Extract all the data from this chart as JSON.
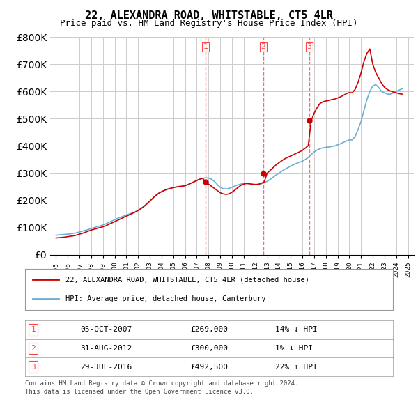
{
  "title": "22, ALEXANDRA ROAD, WHITSTABLE, CT5 4LR",
  "subtitle": "Price paid vs. HM Land Registry's House Price Index (HPI)",
  "legend_line1": "22, ALEXANDRA ROAD, WHITSTABLE, CT5 4LR (detached house)",
  "legend_line2": "HPI: Average price, detached house, Canterbury",
  "footnote1": "Contains HM Land Registry data © Crown copyright and database right 2024.",
  "footnote2": "This data is licensed under the Open Government Licence v3.0.",
  "table_rows": [
    {
      "num": "1",
      "date": "05-OCT-2007",
      "price": "£269,000",
      "change": "14% ↓ HPI"
    },
    {
      "num": "2",
      "date": "31-AUG-2012",
      "price": "£300,000",
      "change": "1% ↓ HPI"
    },
    {
      "num": "3",
      "date": "29-JUL-2016",
      "price": "£492,500",
      "change": "22% ↑ HPI"
    }
  ],
  "sale_dates": [
    2007.75,
    2012.67,
    2016.58
  ],
  "sale_prices": [
    269000,
    300000,
    492500
  ],
  "vline_years": [
    2007.75,
    2012.67,
    2016.58
  ],
  "ylim": [
    0,
    800000
  ],
  "xlim_left": 1994.5,
  "xlim_right": 2025.5,
  "hpi_color": "#6baed6",
  "price_color": "#cc0000",
  "vline_color": "#ff4444",
  "background_color": "#ffffff",
  "grid_color": "#cccccc",
  "hpi_data_x": [
    1995,
    1995.25,
    1995.5,
    1995.75,
    1996,
    1996.25,
    1996.5,
    1996.75,
    1997,
    1997.25,
    1997.5,
    1997.75,
    1998,
    1998.25,
    1998.5,
    1998.75,
    1999,
    1999.25,
    1999.5,
    1999.75,
    2000,
    2000.25,
    2000.5,
    2000.75,
    2001,
    2001.25,
    2001.5,
    2001.75,
    2002,
    2002.25,
    2002.5,
    2002.75,
    2003,
    2003.25,
    2003.5,
    2003.75,
    2004,
    2004.25,
    2004.5,
    2004.75,
    2005,
    2005.25,
    2005.5,
    2005.75,
    2006,
    2006.25,
    2006.5,
    2006.75,
    2007,
    2007.25,
    2007.5,
    2007.75,
    2008,
    2008.25,
    2008.5,
    2008.75,
    2009,
    2009.25,
    2009.5,
    2009.75,
    2010,
    2010.25,
    2010.5,
    2010.75,
    2011,
    2011.25,
    2011.5,
    2011.75,
    2012,
    2012.25,
    2012.5,
    2012.75,
    2013,
    2013.25,
    2013.5,
    2013.75,
    2014,
    2014.25,
    2014.5,
    2014.75,
    2015,
    2015.25,
    2015.5,
    2015.75,
    2016,
    2016.25,
    2016.5,
    2016.75,
    2017,
    2017.25,
    2017.5,
    2017.75,
    2018,
    2018.25,
    2018.5,
    2018.75,
    2019,
    2019.25,
    2019.5,
    2019.75,
    2020,
    2020.25,
    2020.5,
    2020.75,
    2021,
    2021.25,
    2021.5,
    2021.75,
    2022,
    2022.25,
    2022.5,
    2022.75,
    2023,
    2023.25,
    2023.5,
    2023.75,
    2024,
    2024.25,
    2024.5
  ],
  "hpi_data_y": [
    72000,
    73000,
    74000,
    75000,
    76000,
    77500,
    79000,
    81000,
    84000,
    87000,
    90000,
    93000,
    97000,
    100000,
    103000,
    106000,
    110000,
    114000,
    119000,
    124000,
    129000,
    134000,
    138000,
    142000,
    146000,
    150000,
    154000,
    158000,
    163000,
    170000,
    178000,
    187000,
    197000,
    208000,
    218000,
    226000,
    232000,
    237000,
    241000,
    244000,
    247000,
    249000,
    251000,
    252000,
    254000,
    258000,
    263000,
    268000,
    273000,
    278000,
    281000,
    283000,
    282000,
    278000,
    270000,
    258000,
    248000,
    243000,
    242000,
    244000,
    248000,
    253000,
    257000,
    260000,
    262000,
    263000,
    262000,
    260000,
    259000,
    259000,
    261000,
    265000,
    270000,
    277000,
    285000,
    293000,
    300000,
    307000,
    314000,
    320000,
    326000,
    331000,
    336000,
    340000,
    344000,
    350000,
    358000,
    368000,
    378000,
    385000,
    390000,
    393000,
    395000,
    396000,
    398000,
    400000,
    404000,
    408000,
    413000,
    418000,
    422000,
    422000,
    435000,
    460000,
    490000,
    530000,
    570000,
    600000,
    620000,
    625000,
    615000,
    600000,
    595000,
    590000,
    590000,
    595000,
    600000,
    605000,
    610000
  ],
  "price_data_x": [
    1995,
    1995.25,
    1995.5,
    1995.75,
    1996,
    1996.25,
    1996.5,
    1996.75,
    1997,
    1997.25,
    1997.5,
    1997.75,
    1998,
    1998.25,
    1998.5,
    1998.75,
    1999,
    1999.25,
    1999.5,
    1999.75,
    2000,
    2000.25,
    2000.5,
    2000.75,
    2001,
    2001.25,
    2001.5,
    2001.75,
    2002,
    2002.25,
    2002.5,
    2002.75,
    2003,
    2003.25,
    2003.5,
    2003.75,
    2004,
    2004.25,
    2004.5,
    2004.75,
    2005,
    2005.25,
    2005.5,
    2005.75,
    2006,
    2006.25,
    2006.5,
    2006.75,
    2007,
    2007.25,
    2007.5,
    2007.75,
    2008,
    2008.25,
    2008.5,
    2008.75,
    2009,
    2009.25,
    2009.5,
    2009.75,
    2010,
    2010.25,
    2010.5,
    2010.75,
    2011,
    2011.25,
    2011.5,
    2011.75,
    2012,
    2012.25,
    2012.5,
    2012.75,
    2013,
    2013.25,
    2013.5,
    2013.75,
    2014,
    2014.25,
    2014.5,
    2014.75,
    2015,
    2015.25,
    2015.5,
    2015.75,
    2016,
    2016.25,
    2016.5,
    2016.75,
    2017,
    2017.25,
    2017.5,
    2017.75,
    2018,
    2018.25,
    2018.5,
    2018.75,
    2019,
    2019.25,
    2019.5,
    2019.75,
    2020,
    2020.25,
    2020.5,
    2020.75,
    2021,
    2021.25,
    2021.5,
    2021.75,
    2022,
    2022.25,
    2022.5,
    2022.75,
    2023,
    2023.25,
    2023.5,
    2023.75,
    2024,
    2024.25,
    2024.5
  ],
  "price_data_y": [
    62000,
    63000,
    64000,
    65000,
    67000,
    68500,
    70000,
    72500,
    76000,
    79000,
    83000,
    87000,
    91000,
    94000,
    97000,
    100000,
    103000,
    107000,
    112000,
    117000,
    122000,
    127000,
    132000,
    137000,
    142000,
    147000,
    152000,
    157000,
    163000,
    170000,
    178000,
    188000,
    198000,
    208000,
    218000,
    226000,
    232000,
    237000,
    241000,
    244000,
    247000,
    249000,
    251000,
    252000,
    254000,
    258000,
    263000,
    268000,
    273000,
    278000,
    281000,
    269000,
    260000,
    252000,
    244000,
    236000,
    228000,
    224000,
    222000,
    224000,
    230000,
    238000,
    247000,
    255000,
    260000,
    262000,
    261000,
    259000,
    258000,
    259000,
    263000,
    268000,
    300000,
    310000,
    320000,
    330000,
    338000,
    346000,
    353000,
    358000,
    363000,
    368000,
    373000,
    378000,
    384000,
    392000,
    401000,
    492500,
    520000,
    540000,
    556000,
    562000,
    565000,
    567000,
    570000,
    572000,
    576000,
    580000,
    586000,
    592000,
    596000,
    595000,
    608000,
    634000,
    668000,
    710000,
    740000,
    756000,
    700000,
    670000,
    650000,
    630000,
    615000,
    607000,
    602000,
    598000,
    595000,
    592000,
    590000
  ]
}
